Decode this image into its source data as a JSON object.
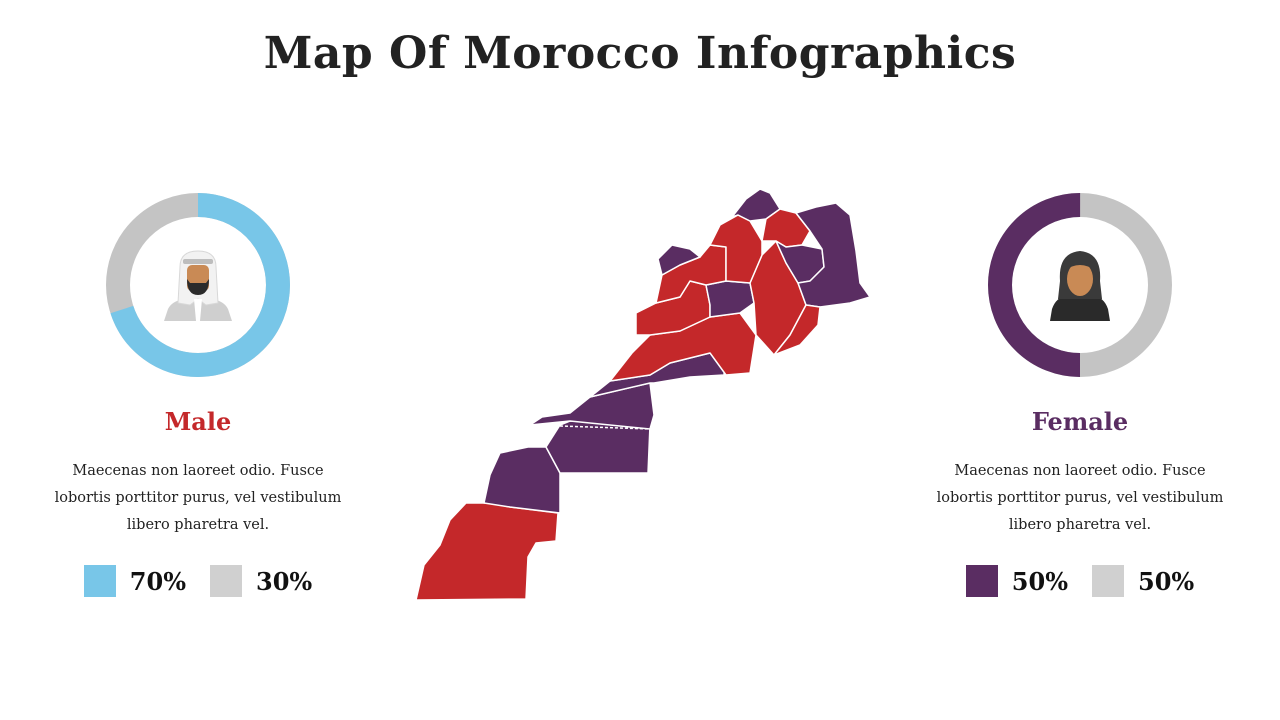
{
  "title": "Map Of Morocco Infographics",
  "colors": {
    "male_accent": "#78c6e8",
    "female_accent": "#5a2d62",
    "neutral": "#c4c4c4",
    "map_red": "#c4282a",
    "map_purple": "#5a2d62",
    "male_label": "#c4282a",
    "female_label": "#5a2d62"
  },
  "male": {
    "label": "Male",
    "description": "Maecenas non laoreet odio. Fusce lobortis porttitor purus, vel vestibulum libero pharetra vel.",
    "percent_primary": 70,
    "legend": [
      {
        "text": "70%",
        "color": "#78c6e8"
      },
      {
        "text": "30%",
        "color": "#d0d0d0"
      }
    ],
    "icon": "man-keffiyeh-icon"
  },
  "female": {
    "label": "Female",
    "description": "Maecenas non laoreet odio. Fusce lobortis porttitor purus, vel vestibulum libero pharetra vel.",
    "percent_primary": 50,
    "legend": [
      {
        "text": "50%",
        "color": "#5a2d62"
      },
      {
        "text": "50%",
        "color": "#d0d0d0"
      }
    ],
    "icon": "woman-hijab-icon"
  },
  "map": {
    "icon": "morocco-map"
  }
}
